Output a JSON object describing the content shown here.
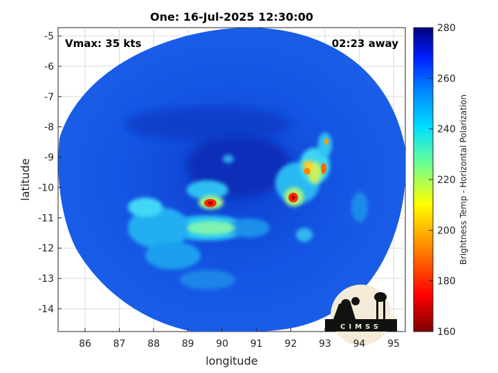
{
  "title": "One: 16-Jul-2025 12:30:00",
  "vmax_label": "Vmax: 35 kts",
  "time_away_label": "02:23 away",
  "x_axis": {
    "label": "longitude",
    "ticks": [
      86,
      87,
      88,
      89,
      90,
      91,
      92,
      93,
      94,
      95
    ]
  },
  "y_axis": {
    "label": "latitude",
    "ticks": [
      -5,
      -6,
      -7,
      -8,
      -9,
      -10,
      -11,
      -12,
      -13,
      -14
    ]
  },
  "colorbar": {
    "label": "Brightness Temp - Horizontal Polarization",
    "ticks": [
      280,
      260,
      240,
      220,
      200,
      180,
      160
    ],
    "range": [
      160,
      280
    ]
  },
  "logo": {
    "text": "CIMSS"
  },
  "colors": {
    "background_field": "#1550e0",
    "low_temp": "#8b0000",
    "high_temp": "#00007f"
  }
}
